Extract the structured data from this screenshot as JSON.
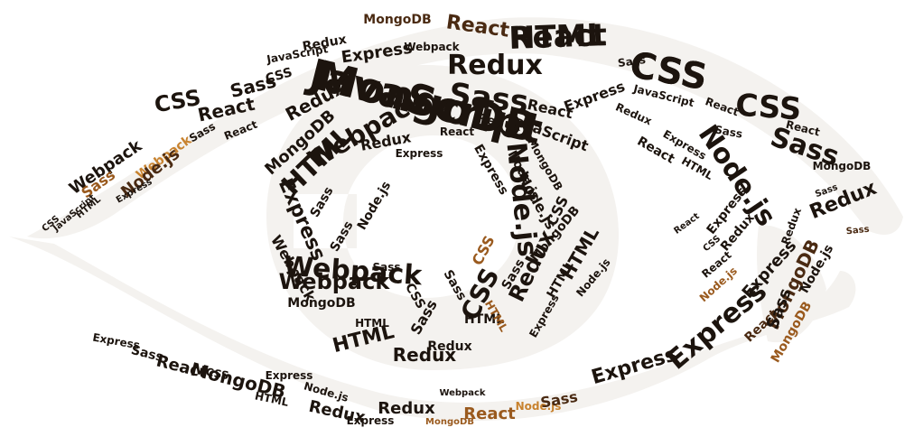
{
  "image": {
    "kind": "word-cloud",
    "shape": "eye",
    "palette": {
      "background": "#ffffff",
      "shape_fill": "#f4f2ef",
      "text_dark": "#1c140e",
      "text_brown": "#4a2a12",
      "text_amber": "#9a5a1e",
      "text_orange": "#c8822e"
    }
  },
  "words": [
    {
      "text": "JavaScript",
      "tone": "dark"
    },
    {
      "text": "React",
      "tone": "dark"
    },
    {
      "text": "CSS",
      "tone": "dark"
    },
    {
      "text": "Sass",
      "tone": "dark"
    },
    {
      "text": "Redux",
      "tone": "dark"
    },
    {
      "text": "Node.js",
      "tone": "dark"
    },
    {
      "text": "Webpack",
      "tone": "dark"
    },
    {
      "text": "HTML",
      "tone": "dark"
    },
    {
      "text": "MongoDB",
      "tone": "brown"
    },
    {
      "text": "Express",
      "tone": "dark"
    },
    {
      "text": "React",
      "tone": "brown"
    },
    {
      "text": "CSS",
      "tone": "dark"
    },
    {
      "text": "Sass",
      "tone": "dark"
    },
    {
      "text": "Redux",
      "tone": "dark"
    },
    {
      "text": "React",
      "tone": "dark"
    },
    {
      "text": "CSS",
      "tone": "dark"
    },
    {
      "text": "Webpack",
      "tone": "dark"
    },
    {
      "text": "Redux",
      "tone": "dark"
    },
    {
      "text": "HTML",
      "tone": "dark"
    },
    {
      "text": "Express",
      "tone": "dark"
    },
    {
      "text": "Node.js",
      "tone": "dark"
    },
    {
      "text": "CSS",
      "tone": "dark"
    },
    {
      "text": "Sass",
      "tone": "dark"
    },
    {
      "text": "Express",
      "tone": "dark"
    },
    {
      "text": "Redux",
      "tone": "dark"
    },
    {
      "text": "Webpack",
      "tone": "dark"
    },
    {
      "text": "MongoDB",
      "tone": "dark"
    },
    {
      "text": "Sass",
      "tone": "amber"
    },
    {
      "text": "Webpack",
      "tone": "orange"
    },
    {
      "text": "Node.js",
      "tone": "brown"
    },
    {
      "text": "Express",
      "tone": "dark"
    },
    {
      "text": "React",
      "tone": "brown"
    },
    {
      "text": "MongoDB",
      "tone": "brown"
    },
    {
      "text": "Sass",
      "tone": "dark"
    },
    {
      "text": "Redux",
      "tone": "dark"
    },
    {
      "text": "Express",
      "tone": "dark"
    },
    {
      "text": "MongoDB",
      "tone": "amber"
    },
    {
      "text": "React",
      "tone": "amber"
    },
    {
      "text": "Node.js",
      "tone": "orange"
    },
    {
      "text": "Sass",
      "tone": "brown"
    },
    {
      "text": "Express",
      "tone": "dark"
    },
    {
      "text": "CSS",
      "tone": "dark"
    },
    {
      "text": "HTML",
      "tone": "dark"
    },
    {
      "text": "MongoDB",
      "tone": "dark"
    },
    {
      "text": "JavaScript",
      "tone": "dark"
    },
    {
      "text": "Node.js",
      "tone": "dark"
    },
    {
      "text": "Redux",
      "tone": "dark"
    },
    {
      "text": "React",
      "tone": "dark"
    },
    {
      "text": "Sass",
      "tone": "dark"
    },
    {
      "text": "Express",
      "tone": "dark"
    },
    {
      "text": "CSS",
      "tone": "dark"
    },
    {
      "text": "HTML",
      "tone": "dark"
    },
    {
      "text": "Webpack",
      "tone": "dark"
    },
    {
      "text": "Express",
      "tone": "dark"
    },
    {
      "text": "Redux",
      "tone": "dark"
    },
    {
      "text": "Sass",
      "tone": "dark"
    },
    {
      "text": "Webpack",
      "tone": "dark"
    },
    {
      "text": "MongoDB",
      "tone": "dark"
    },
    {
      "text": "React",
      "tone": "dark"
    },
    {
      "text": "HTML",
      "tone": "dark"
    },
    {
      "text": "HTML",
      "tone": "dark"
    },
    {
      "text": "Node.js",
      "tone": "dark"
    },
    {
      "text": "Sass",
      "tone": "dark"
    },
    {
      "text": "Redux",
      "tone": "dark"
    },
    {
      "text": "Webpack",
      "tone": "dark"
    },
    {
      "text": "JavaScript",
      "tone": "dark"
    },
    {
      "text": "Express",
      "tone": "dark"
    },
    {
      "text": "Sass",
      "tone": "dark"
    },
    {
      "text": "CSS",
      "tone": "dark"
    },
    {
      "text": "Redux",
      "tone": "dark"
    },
    {
      "text": "Node.js",
      "tone": "dark"
    },
    {
      "text": "HTML",
      "tone": "dark"
    },
    {
      "text": "React",
      "tone": "dark"
    },
    {
      "text": "CSS",
      "tone": "dark"
    },
    {
      "text": "Sass",
      "tone": "dark"
    },
    {
      "text": "Express",
      "tone": "dark"
    },
    {
      "text": "MongoDB",
      "tone": "dark"
    },
    {
      "text": "Redux",
      "tone": "dark"
    },
    {
      "text": "CSS",
      "tone": "amber"
    },
    {
      "text": "HTML",
      "tone": "amber"
    },
    {
      "text": "Sass",
      "tone": "dark"
    },
    {
      "text": "Node.js",
      "tone": "dark"
    },
    {
      "text": "Express",
      "tone": "dark"
    },
    {
      "text": "MongoDB",
      "tone": "dark"
    },
    {
      "text": "Sass",
      "tone": "dark"
    },
    {
      "text": "Node.js",
      "tone": "dark"
    },
    {
      "text": "Redux",
      "tone": "dark"
    },
    {
      "text": "React",
      "tone": "dark"
    },
    {
      "text": "JavaScript",
      "tone": "dark"
    },
    {
      "text": "Express",
      "tone": "dark"
    },
    {
      "text": "Sass",
      "tone": "dark"
    },
    {
      "text": "React",
      "tone": "dark"
    },
    {
      "text": "Sass",
      "tone": "dark"
    },
    {
      "text": "React",
      "tone": "dark"
    },
    {
      "text": "MongoDB",
      "tone": "dark"
    },
    {
      "text": "Sass",
      "tone": "dark"
    },
    {
      "text": "Redux",
      "tone": "dark"
    },
    {
      "text": "Express",
      "tone": "dark"
    },
    {
      "text": "MongoDB",
      "tone": "amber"
    },
    {
      "text": "React",
      "tone": "dark"
    },
    {
      "text": "Node.js",
      "tone": "amber"
    },
    {
      "text": "Sass",
      "tone": "brown"
    },
    {
      "text": "HTML",
      "tone": "dark"
    },
    {
      "text": "Express",
      "tone": "dark"
    },
    {
      "text": "CSS",
      "tone": "dark"
    },
    {
      "text": "React",
      "tone": "dark"
    },
    {
      "text": "Redux",
      "tone": "dark"
    },
    {
      "text": "Node.js",
      "tone": "dark"
    },
    {
      "text": "CSS",
      "tone": "dark"
    },
    {
      "text": "HTML",
      "tone": "dark"
    },
    {
      "text": "Express",
      "tone": "dark"
    },
    {
      "text": "Sass",
      "tone": "dark"
    },
    {
      "text": "React",
      "tone": "dark"
    },
    {
      "text": "JavaScript",
      "tone": "dark"
    },
    {
      "text": "Redux",
      "tone": "dark"
    },
    {
      "text": "Webpack",
      "tone": "dark"
    },
    {
      "text": "MongoDB",
      "tone": "dark"
    },
    {
      "text": "HTML",
      "tone": "dark"
    },
    {
      "text": "CSS",
      "tone": "dark"
    }
  ]
}
